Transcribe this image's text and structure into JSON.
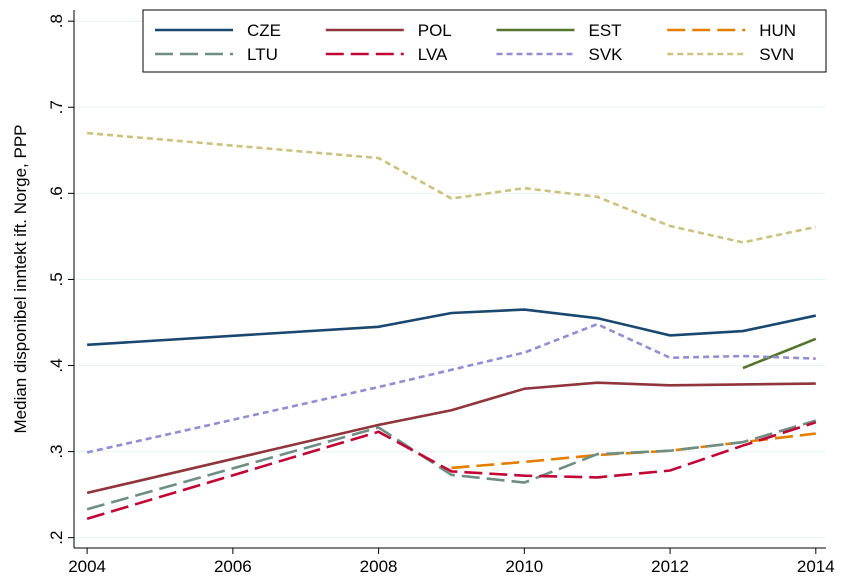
{
  "chart_data": {
    "type": "line",
    "y_label": "Median disponibel inntekt ift. Norge, PPP",
    "x": [
      2004,
      2008,
      2009,
      2010,
      2011,
      2012,
      2013,
      2014
    ],
    "series": [
      {
        "name": "CZE",
        "color": "#1a476f",
        "dash": "solid",
        "values": [
          0.424,
          0.445,
          0.461,
          0.465,
          0.455,
          0.435,
          0.44,
          0.458
        ]
      },
      {
        "name": "POL",
        "color": "#90353b",
        "dash": "solid",
        "values": [
          0.252,
          0.331,
          0.348,
          0.373,
          0.38,
          0.377,
          0.378,
          0.379
        ]
      },
      {
        "name": "EST",
        "color": "#55752f",
        "dash": "solid",
        "values": [
          null,
          null,
          null,
          null,
          null,
          null,
          0.397,
          0.431
        ]
      },
      {
        "name": "HUN",
        "color": "#e37e00",
        "dash": "long",
        "values": [
          null,
          null,
          0.281,
          0.288,
          0.296,
          0.301,
          0.311,
          0.321
        ]
      },
      {
        "name": "LTU",
        "color": "#6e8e84",
        "dash": "long",
        "values": [
          0.233,
          0.328,
          0.273,
          0.264,
          0.297,
          0.301,
          0.311,
          0.336
        ]
      },
      {
        "name": "LVA",
        "color": "#c10534",
        "dash": "long",
        "values": [
          0.222,
          0.323,
          0.277,
          0.272,
          0.27,
          0.278,
          0.307,
          0.334
        ]
      },
      {
        "name": "SVK",
        "color": "#938dd2",
        "dash": "short",
        "values": [
          0.299,
          0.375,
          0.395,
          0.415,
          0.448,
          0.409,
          0.411,
          0.408
        ]
      },
      {
        "name": "SVN",
        "color": "#cac27e",
        "dash": "short",
        "values": [
          0.67,
          0.641,
          0.594,
          0.606,
          0.596,
          0.562,
          0.543,
          0.561
        ]
      }
    ],
    "xlim": [
      2003.82,
      2014.14
    ],
    "xticks": [
      2004,
      2006,
      2008,
      2010,
      2012,
      2014
    ],
    "ylim": [
      0.188,
      0.813
    ],
    "yticks": [
      {
        "value": 0.2,
        "label": ".2"
      },
      {
        "value": 0.3,
        "label": ".3"
      },
      {
        "value": 0.4,
        "label": ".4"
      },
      {
        "value": 0.5,
        "label": ".5"
      },
      {
        "value": 0.6,
        "label": ".6"
      },
      {
        "value": 0.7,
        "label": ".7"
      },
      {
        "value": 0.8,
        "label": ".8"
      }
    ],
    "grid": true,
    "legend": "top",
    "legend_columns": 4
  }
}
